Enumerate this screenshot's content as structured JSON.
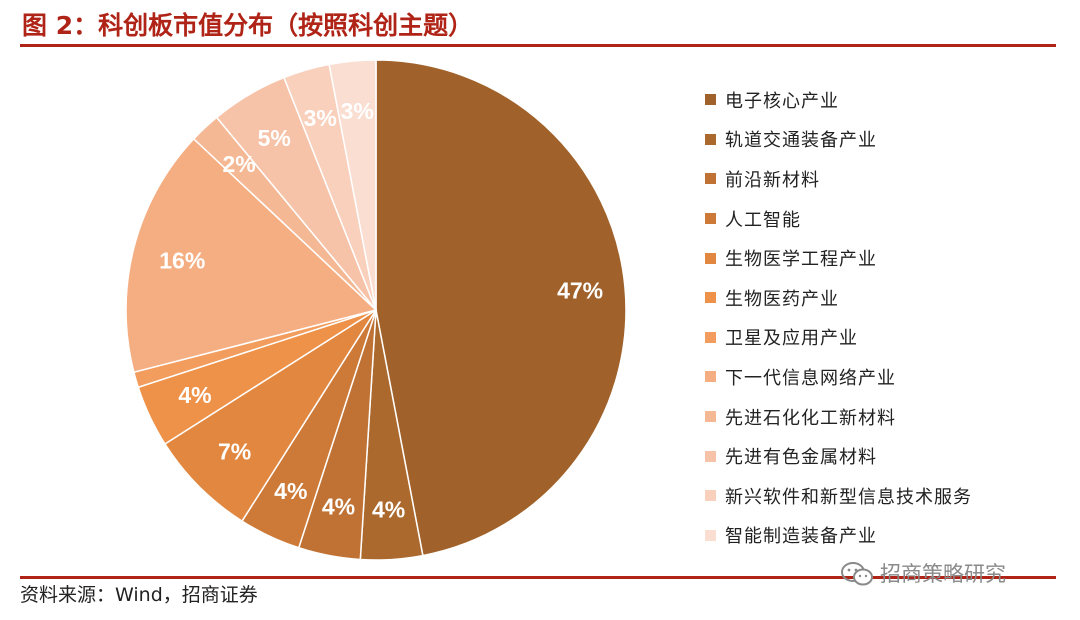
{
  "figure": {
    "title": "图 2：科创板市值分布（按照科创主题）",
    "source": "资料来源：Wind，招商证券",
    "watermark": "招商策略研究",
    "watermark_icon": "wechat-icon"
  },
  "chart_data": {
    "type": "pie",
    "start": "top",
    "direction": "clockwise",
    "slices": [
      {
        "name": "电子核心产业",
        "value": 47,
        "label": "47%",
        "color": "#A0622A"
      },
      {
        "name": "轨道交通装备产业",
        "value": 4,
        "label": "4%",
        "color": "#AC692E"
      },
      {
        "name": "前沿新材料",
        "value": 4,
        "label": "4%",
        "color": "#BF7234"
      },
      {
        "name": "人工智能",
        "value": 4,
        "label": "4%",
        "color": "#CD7A38"
      },
      {
        "name": "生物医学工程产业",
        "value": 7,
        "label": "7%",
        "color": "#E2873F"
      },
      {
        "name": "生物医药产业",
        "value": 4,
        "label": "4%",
        "color": "#EE9149"
      },
      {
        "name": "卫星及应用产业",
        "value": 1,
        "label": "",
        "color": "#F29D5E"
      },
      {
        "name": "下一代信息网络产业",
        "value": 16,
        "label": "16%",
        "color": "#F5AE82"
      },
      {
        "name": "先进石化化工新材料",
        "value": 2,
        "label": "2%",
        "color": "#F4B894"
      },
      {
        "name": "先进有色金属材料",
        "value": 5,
        "label": "5%",
        "color": "#F6C3A8"
      },
      {
        "name": "新兴软件和新型信息技术服务",
        "value": 3,
        "label": "3%",
        "color": "#F8D0BC"
      },
      {
        "name": "智能制造装备产业",
        "value": 3,
        "label": "3%",
        "color": "#FADED1"
      }
    ]
  }
}
